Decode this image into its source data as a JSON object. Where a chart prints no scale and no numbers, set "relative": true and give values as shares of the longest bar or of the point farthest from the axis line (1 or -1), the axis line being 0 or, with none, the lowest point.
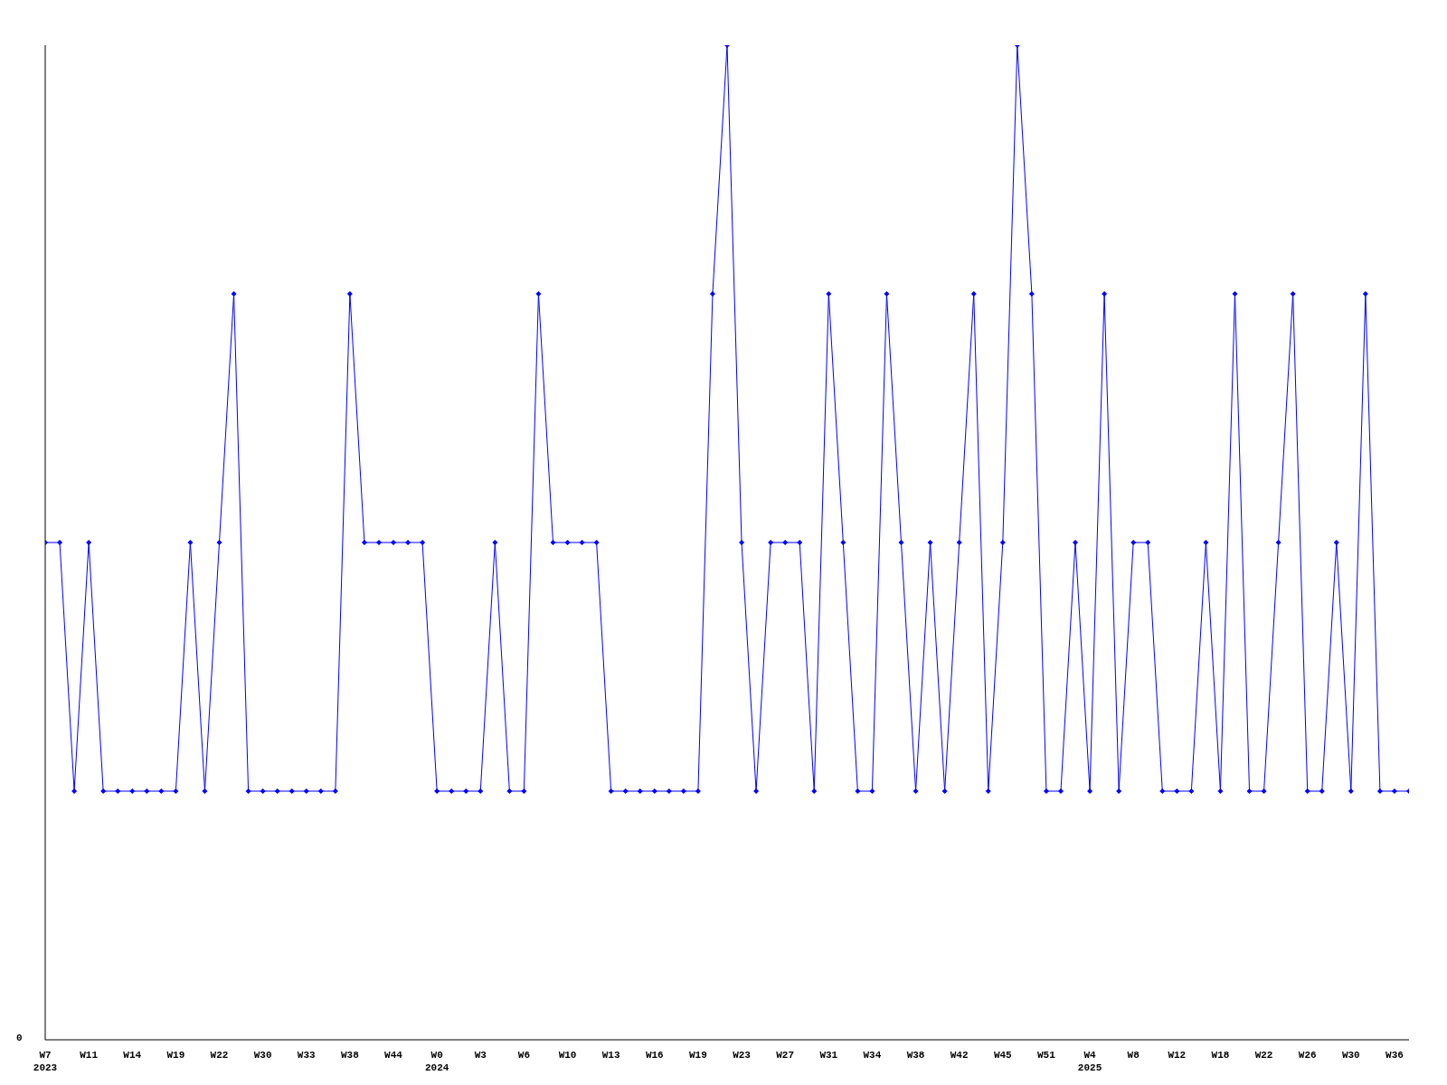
{
  "chart_data": {
    "type": "line",
    "relative": true,
    "categories": [
      "W7\n2023",
      null,
      null,
      "W11",
      null,
      null,
      "W14",
      null,
      null,
      "W19",
      null,
      null,
      "W22",
      null,
      null,
      "W30",
      null,
      null,
      "W33",
      null,
      null,
      "W38",
      null,
      null,
      "W44",
      null,
      null,
      "W0\n2024",
      null,
      null,
      "W3",
      null,
      null,
      "W6",
      null,
      null,
      "W10",
      null,
      null,
      "W13",
      null,
      null,
      "W16",
      null,
      null,
      "W19",
      null,
      null,
      "W23",
      null,
      null,
      "W27",
      null,
      null,
      "W31",
      null,
      null,
      "W34",
      null,
      null,
      "W38",
      null,
      null,
      "W42",
      null,
      null,
      "W45",
      null,
      null,
      "W51",
      null,
      null,
      "W4\n2025",
      null,
      null,
      "W8",
      null,
      null,
      "W12",
      null,
      null,
      "W18",
      null,
      null,
      "W22",
      null,
      null,
      "W26",
      null,
      null,
      "W30",
      null,
      null,
      "W36",
      null
    ],
    "series": [
      {
        "color": "#0000ff",
        "values": [
          0.5,
          0.5,
          0.25,
          0.5,
          0.25,
          0.25,
          0.25,
          0.25,
          0.25,
          0.25,
          0.5,
          0.25,
          0.5,
          0.75,
          0.25,
          0.25,
          0.25,
          0.25,
          0.25,
          0.25,
          0.25,
          0.75,
          0.5,
          0.5,
          0.5,
          0.5,
          0.5,
          0.25,
          0.25,
          0.25,
          0.25,
          0.5,
          0.25,
          0.25,
          0.75,
          0.5,
          0.5,
          0.5,
          0.5,
          0.25,
          0.25,
          0.25,
          0.25,
          0.25,
          0.25,
          0.25,
          0.75,
          1,
          0.5,
          0.25,
          0.5,
          0.5,
          0.5,
          0.25,
          0.75,
          0.5,
          0.25,
          0.25,
          0.75,
          0.5,
          0.25,
          0.5,
          0.25,
          0.5,
          0.75,
          0.25,
          0.5,
          1,
          0.75,
          0.25,
          0.25,
          0.5,
          0.25,
          0.75,
          0.25,
          0.5,
          0.5,
          0.25,
          0.25,
          0.25,
          0.5,
          0.25,
          0.75,
          0.25,
          0.25,
          0.5,
          0.75,
          0.25,
          0.25,
          0.5,
          0.25,
          0.75,
          0.25,
          0.25,
          0.25
        ]
      }
    ],
    "annotations": [
      "0"
    ],
    "marker": "diamond",
    "grid": false,
    "legend": false
  }
}
